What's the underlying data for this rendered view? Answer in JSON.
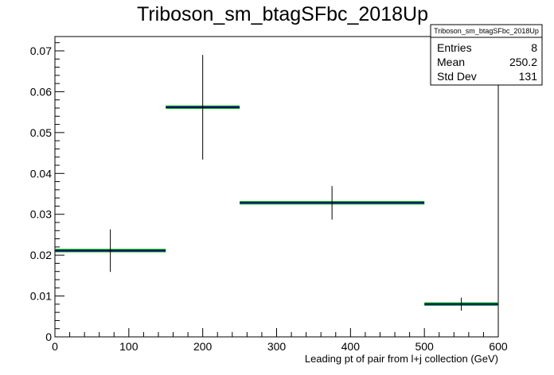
{
  "chart_data": {
    "type": "histogram",
    "title": "Triboson_sm_btagSFbc_2018Up",
    "xlabel": "Leading pt of pair from l+j collection (GeV)",
    "ylabel": "",
    "xlim": [
      0,
      600
    ],
    "ylim": [
      0,
      0.0735
    ],
    "x_ticks": [
      "0",
      "100",
      "200",
      "300",
      "400",
      "500",
      "600"
    ],
    "y_ticks": [
      "0",
      "0.01",
      "0.02",
      "0.03",
      "0.04",
      "0.05",
      "0.06",
      "0.07"
    ],
    "x_tick_values": [
      0,
      100,
      200,
      300,
      400,
      500,
      600
    ],
    "y_tick_values": [
      0,
      0.01,
      0.02,
      0.03,
      0.04,
      0.05,
      0.06,
      0.07
    ],
    "bins": [
      {
        "xlow": 0,
        "xhigh": 150,
        "value": 0.0211,
        "error": 0.0052
      },
      {
        "xlow": 150,
        "xhigh": 250,
        "value": 0.0562,
        "error": 0.0128
      },
      {
        "xlow": 250,
        "xhigh": 500,
        "value": 0.0328,
        "error": 0.0041
      },
      {
        "xlow": 500,
        "xhigh": 600,
        "value": 0.008,
        "error": 0.0016
      }
    ],
    "stats": {
      "name": "Triboson_sm_btagSFbc_2018Up",
      "rows": [
        {
          "label": "Entries",
          "value": "8"
        },
        {
          "label": "Mean",
          "value": "250.2"
        },
        {
          "label": "Std Dev",
          "value": "131"
        }
      ]
    },
    "colors": {
      "central_line": "#000080",
      "up_variation": "#00aa00",
      "error_bar": "#000000"
    }
  }
}
